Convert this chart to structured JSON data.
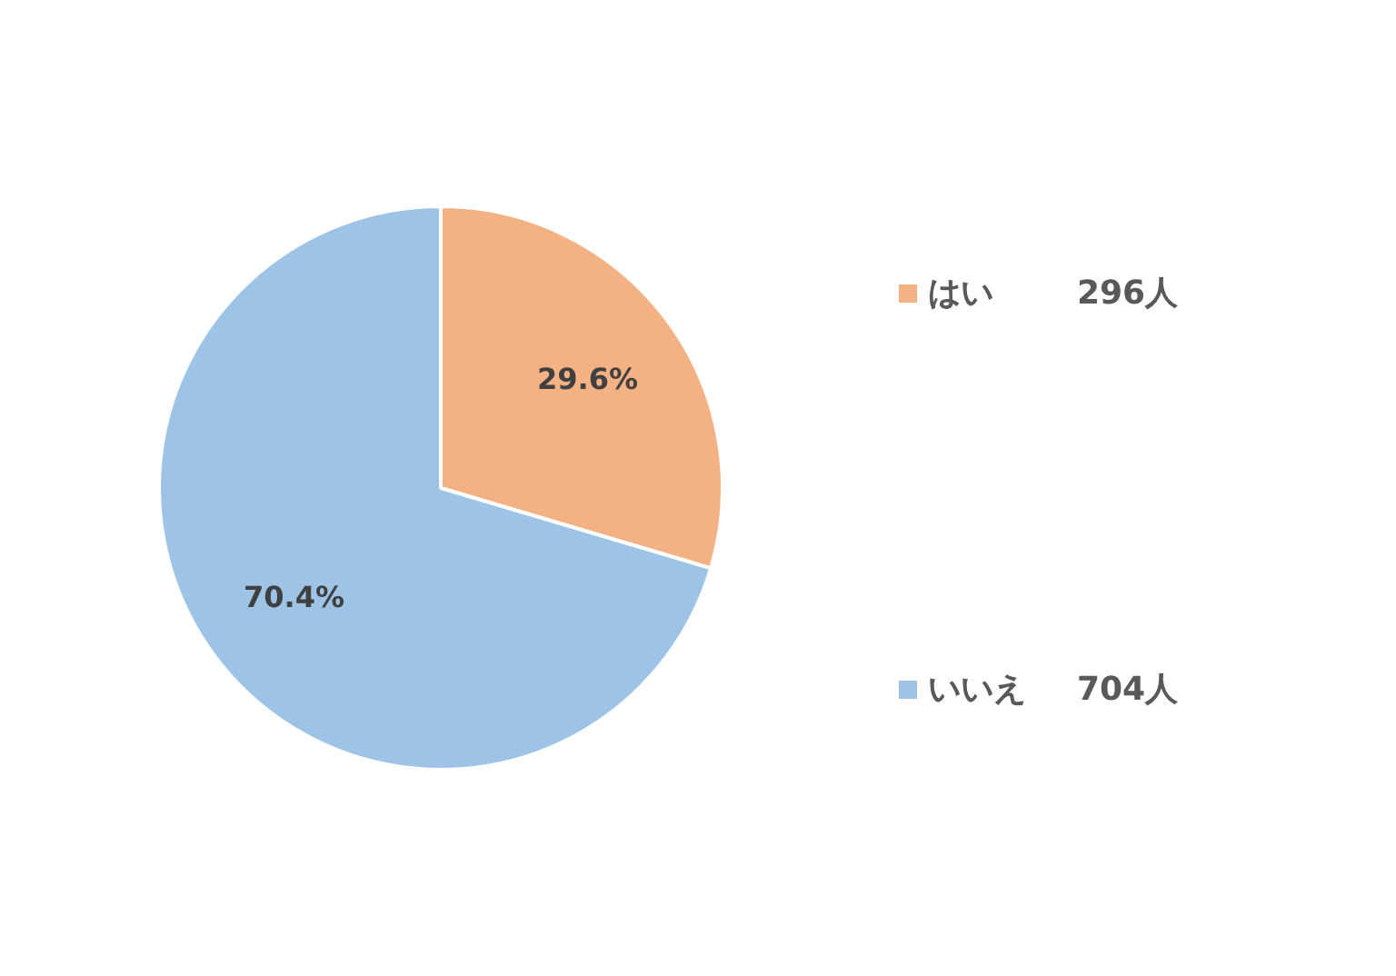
{
  "chart_data": {
    "type": "pie",
    "categories": [
      "はい",
      "いいえ"
    ],
    "values": [
      29.6,
      70.4
    ],
    "colors": [
      "#f4b183",
      "#9dc3e6"
    ],
    "value_labels": [
      "29.6%",
      "70.4%"
    ],
    "annotations": [
      "296人",
      "704人"
    ],
    "legend": "right"
  }
}
